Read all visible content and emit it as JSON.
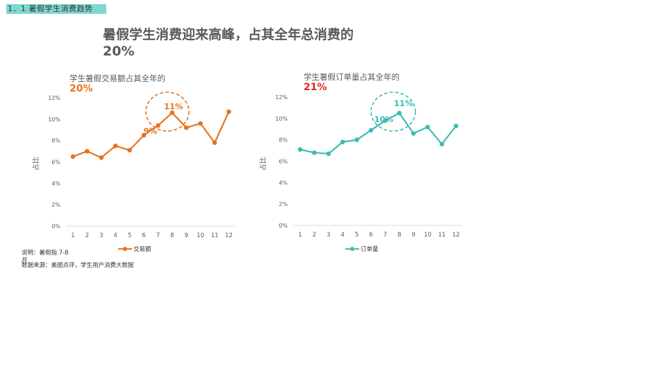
{
  "section": {
    "tag": "1．1 暑假学生消费趋势"
  },
  "headline": {
    "line1": "暑假学生消费迎来高峰，占其全年总消费的",
    "line2": "20%"
  },
  "chart_data": [
    {
      "type": "line",
      "title": "学生暑假交易额占其全年的",
      "title_value": "20%",
      "title_value_color": "#e8731a",
      "series": [
        {
          "name": "交易额",
          "color": "#e8731a",
          "values": [
            6.5,
            7.0,
            6.4,
            7.5,
            7.1,
            8.5,
            9.4,
            10.6,
            9.2,
            9.6,
            7.8,
            10.7
          ]
        }
      ],
      "categories": [
        "1",
        "2",
        "3",
        "4",
        "5",
        "6",
        "7",
        "8",
        "9",
        "10",
        "11",
        "12"
      ],
      "ylabel": "占比",
      "ylim": [
        0,
        12
      ],
      "yticks": [
        "0%",
        "2%",
        "4%",
        "6%",
        "8%",
        "10%",
        "12%"
      ],
      "annotations": [
        {
          "text": "9%",
          "month": 7
        },
        {
          "text": "11%",
          "month": 8
        }
      ],
      "legend": "bottom"
    },
    {
      "type": "line",
      "title": "学生暑假订单量占其全年的",
      "title_value": "21%",
      "title_value_color": "#e52222",
      "series": [
        {
          "name": "订单量",
          "color": "#3dbdb2",
          "values": [
            7.1,
            6.8,
            6.7,
            7.8,
            8.0,
            8.9,
            9.8,
            10.5,
            8.6,
            9.2,
            7.6,
            9.3
          ]
        }
      ],
      "categories": [
        "1",
        "2",
        "3",
        "4",
        "5",
        "6",
        "7",
        "8",
        "9",
        "10",
        "11",
        "12"
      ],
      "ylabel": "占比",
      "ylim": [
        0,
        12
      ],
      "yticks": [
        "0%",
        "2%",
        "4%",
        "6%",
        "8%",
        "10%",
        "12%"
      ],
      "annotations": [
        {
          "text": "10%",
          "month": 7
        },
        {
          "text": "11%",
          "month": 8
        }
      ],
      "legend": "bottom"
    }
  ],
  "notes": {
    "explain": "说明：暑假指 7-8月",
    "source": "数据来源：美团点评，学生用户消费大数据"
  }
}
